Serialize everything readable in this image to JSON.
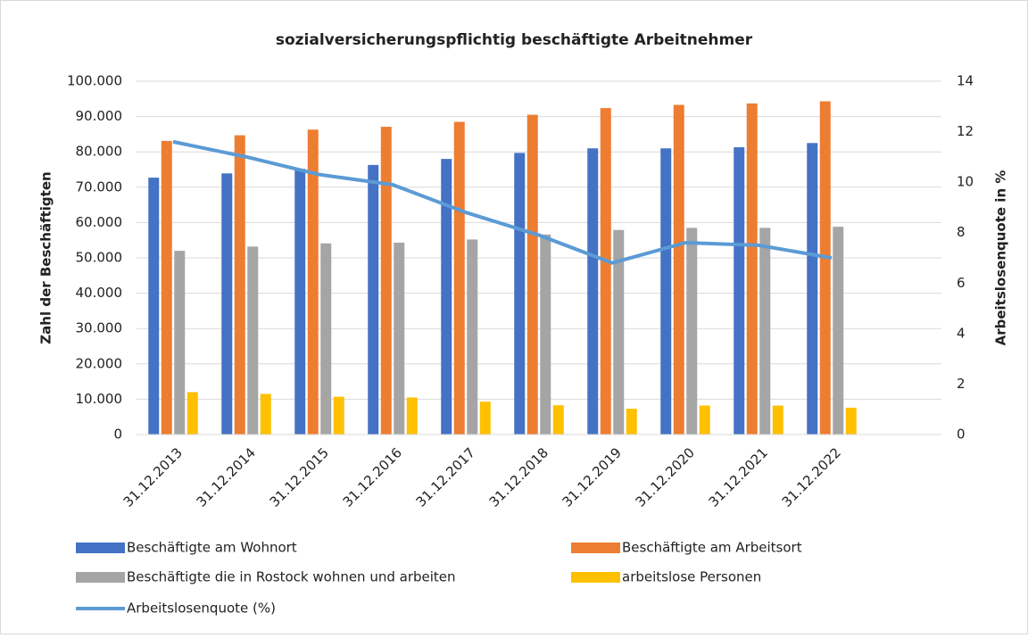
{
  "chart_data": {
    "type": "bar_line",
    "title": "sozialversicherungspflichtig beschäftigte Arbeitnehmer",
    "y_label": "Zahl der Beschäftigten",
    "y2_label": "Arbeitslosenquote in %",
    "categories": [
      "31.12.2013",
      "31.12.2014",
      "31.12.2015",
      "31.12.2016",
      "31.12.2017",
      "31.12.2018",
      "31.12.2019",
      "31.12.2020",
      "31.12.2021",
      "31.12.2022",
      null
    ],
    "series": [
      {
        "name": "Beschäftigte am Wohnort",
        "type": "bar",
        "color": "#4472c4",
        "values": [
          72700,
          73900,
          75200,
          76300,
          78000,
          79700,
          81000,
          81000,
          81300,
          82500,
          null
        ]
      },
      {
        "name": "Beschäftigte am Arbeitsort",
        "type": "bar",
        "color": "#ed7d31",
        "values": [
          83100,
          84700,
          86300,
          87100,
          88500,
          90500,
          92400,
          93300,
          93700,
          94300,
          null
        ]
      },
      {
        "name": "Beschäftigte die in Rostock wohnen und arbeiten",
        "type": "bar",
        "color": "#a5a5a5",
        "values": [
          52000,
          53200,
          54100,
          54300,
          55200,
          56600,
          57900,
          58500,
          58500,
          58800,
          null
        ]
      },
      {
        "name": "arbeitslose Personen",
        "type": "bar",
        "color": "#ffc000",
        "values": [
          12000,
          11500,
          10700,
          10500,
          9300,
          8300,
          7300,
          8200,
          8200,
          7600,
          null
        ]
      },
      {
        "name": "Arbeitslosenquote (%)",
        "type": "line",
        "axis": "y2",
        "color": "#5b9bd5",
        "values": [
          11.6,
          11.0,
          10.3,
          9.9,
          8.8,
          7.9,
          6.8,
          7.6,
          7.5,
          7.0,
          null
        ]
      }
    ],
    "ylim": [
      0,
      100000
    ],
    "yticks": [
      0,
      {
        "value": 10000,
        "label": "10.000"
      },
      {
        "value": 20000,
        "label": "20.000"
      },
      {
        "value": 30000,
        "label": "30.000"
      },
      {
        "value": 40000,
        "label": "40.000"
      },
      {
        "value": 50000,
        "label": "50.000"
      },
      {
        "value": 60000,
        "label": "60.000"
      },
      {
        "value": 70000,
        "label": "70.000"
      },
      {
        "value": 80000,
        "label": "80.000"
      },
      {
        "value": 90000,
        "label": "90.000"
      },
      {
        "value": 100000,
        "label": "100.000"
      }
    ],
    "y2lim": [
      0,
      14
    ],
    "y2ticks": [
      0,
      2,
      4,
      6,
      8,
      10,
      12,
      14
    ],
    "grid": true,
    "legend": "bottom"
  }
}
